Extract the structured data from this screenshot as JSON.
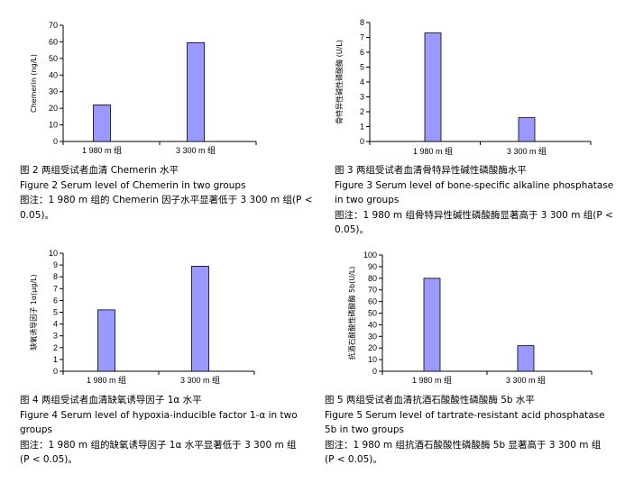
{
  "chart_data": [
    {
      "type": "bar",
      "ylabel": "Chemerin (ng/L)",
      "categories": [
        "1 980 m 组",
        "3 300 m 组"
      ],
      "values": [
        22,
        59.5
      ],
      "ylim": [
        0,
        70
      ],
      "yticks": [
        "0",
        "10",
        "20",
        "30",
        "40",
        "50",
        "60",
        "70"
      ],
      "grid": false,
      "legend": "none",
      "bar_color": "#9999ff",
      "caption": {
        "line1": "图 2   两组受试者血清 Chemerin 水平",
        "line2": "Figure 2    Serum level of Chemerin in two groups",
        "line3": "图注：1 980 m 组的 Chemerin 因子水平显著低于 3 300 m 组(P <",
        "line4": "0.05)。"
      }
    },
    {
      "type": "bar",
      "ylabel": "骨特异性碱性磷酸酶 (U/L)",
      "categories": [
        "1 980 m 组",
        "3 300 m 组"
      ],
      "values": [
        7.3,
        1.6
      ],
      "ylim": [
        0,
        8
      ],
      "yticks": [
        "0",
        "1",
        "2",
        "3",
        "4",
        "5",
        "6",
        "7",
        "8"
      ],
      "grid": false,
      "legend": "none",
      "bar_color": "#9999ff",
      "caption": {
        "line1": "图 3   两组受试者血清骨特异性碱性磷酸酶水平",
        "line2": "Figure 3    Serum level of bone-specific alkaline phosphatase",
        "line3": "in two groups",
        "line4": "图注：1 980 m 组骨特异性碱性磷酸酶显著高于 3 300 m 组(P <",
        "line5": "0.05)。"
      }
    },
    {
      "type": "bar",
      "ylabel": "缺氧诱导因子 1α(μg/L)",
      "categories": [
        "1 980 m 组",
        "3 300 m 组"
      ],
      "values": [
        5.2,
        8.9
      ],
      "ylim": [
        0,
        10
      ],
      "yticks": [
        "0",
        "1",
        "2",
        "3",
        "4",
        "5",
        "6",
        "7",
        "8",
        "9",
        "10"
      ],
      "grid": false,
      "legend": "none",
      "bar_color": "#9999ff",
      "caption": {
        "line1": "图 4   两组受试者血清缺氧诱导因子 1α 水平",
        "line2": "Figure 4    Serum level of hypoxia-inducible factor 1-α in two",
        "line3": "groups",
        "line4": "图注：1 980 m 组的缺氧诱导因子 1α 水平显著低于 3 300 m 组",
        "line5": "(P < 0.05)。"
      }
    },
    {
      "type": "bar",
      "ylabel": "抗酒石酸酸性磷酸酶 5b(U/L)",
      "categories": [
        "1 980 m 组",
        "3 300 m 组"
      ],
      "values": [
        80,
        22
      ],
      "ylim": [
        0,
        100
      ],
      "yticks": [
        "0",
        "10",
        "20",
        "30",
        "40",
        "50",
        "60",
        "70",
        "80",
        "90",
        "100"
      ],
      "grid": false,
      "legend": "none",
      "bar_color": "#9999ff",
      "caption": {
        "line1": "图 5   两组受试者血清抗酒石酸酸性磷酸酶 5b 水平",
        "line2": "Figure 5    Serum level of tartrate-resistant acid phosphatase",
        "line3": "5b in two groups",
        "line4": "图注：1 980 m 组抗酒石酸酸性磷酸酶 5b 显著高于 3 300 m 组",
        "line5": "(P < 0.05)。"
      }
    }
  ]
}
